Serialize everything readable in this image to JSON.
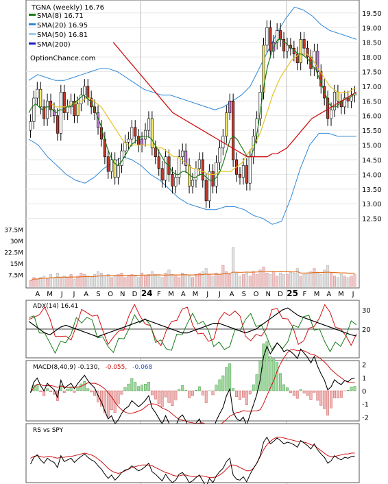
{
  "chart_data": {
    "type": "candlestick",
    "ticker_label": "TGNA (weekly) 16.76",
    "legend": [
      {
        "label": "SMA(8) 16.71",
        "color": "#1a7a1a"
      },
      {
        "label": "SMA(20) 16.95",
        "color": "#2e86d6"
      },
      {
        "label": "SMA(50) 16.81",
        "color": "#9ad0f5"
      },
      {
        "label": "SMA(200)",
        "color": "#1a1acc"
      }
    ],
    "watermark": "OptionChance.com",
    "months": [
      "A",
      "M",
      "J",
      "J",
      "A",
      "S",
      "O",
      "N",
      "D",
      "24",
      "F",
      "M",
      "A",
      "M",
      "J",
      "J",
      "A",
      "S",
      "O",
      "N",
      "D",
      "25",
      "F",
      "M",
      "A",
      "M",
      "J"
    ],
    "price_axis": {
      "min": 12.0,
      "max": 19.8,
      "ticks": [
        "19.50",
        "19.00",
        "18.50",
        "18.00",
        "17.50",
        "17.00",
        "16.50",
        "16.00",
        "15.50",
        "15.00",
        "14.50",
        "14.00",
        "13.50",
        "13.00",
        "12.50"
      ]
    },
    "volume_axis": {
      "max": 40,
      "ticks": [
        "37.5M",
        "30M",
        "22.5M",
        "15M",
        "7.5M"
      ]
    },
    "close": [
      15.8,
      16.6,
      16.9,
      16.3,
      15.9,
      16.5,
      16.2,
      16.0,
      15.4,
      16.8,
      16.1,
      16.3,
      16.5,
      16.0,
      16.4,
      16.7,
      17.0,
      16.6,
      16.3,
      16.1,
      15.6,
      15.2,
      14.6,
      14.1,
      14.5,
      13.9,
      14.3,
      14.8,
      15.1,
      15.2,
      15.6,
      15.3,
      15.0,
      15.2,
      15.5,
      15.9,
      14.9,
      14.6,
      14.2,
      13.8,
      14.6,
      14.0,
      13.6,
      13.9,
      14.6,
      14.8,
      14.3,
      13.6,
      13.8,
      14.2,
      14.5,
      13.8,
      13.1,
      14.1,
      13.6,
      14.4,
      14.9,
      15.3,
      16.1,
      16.5,
      14.5,
      14.0,
      13.9,
      14.3,
      13.7,
      14.6,
      15.3,
      15.9,
      16.8,
      18.4,
      19.0,
      18.2,
      18.5,
      18.9,
      18.6,
      18.2,
      18.4,
      18.3,
      18.1,
      17.8,
      18.6,
      18.3,
      18.0,
      17.6,
      18.2,
      17.5,
      17.0,
      16.6,
      15.9,
      16.2,
      16.8,
      16.5,
      16.3,
      16.6,
      16.5,
      16.7,
      16.76
    ],
    "sma8": [
      16.1,
      16.3,
      16.4,
      16.3,
      16.2,
      16.3,
      16.3,
      16.2,
      16.1,
      16.2,
      16.2,
      16.3,
      16.3,
      16.4,
      16.5,
      16.6,
      16.7,
      16.6,
      16.5,
      16.3,
      16.0,
      15.7,
      15.3,
      14.9,
      14.6,
      14.4,
      14.3,
      14.4,
      14.6,
      14.8,
      15.0,
      15.1,
      15.2,
      15.3,
      15.3,
      15.3,
      15.2,
      15.0,
      14.8,
      14.6,
      14.4,
      14.3,
      14.1,
      14.0,
      14.0,
      14.1,
      14.1,
      14.0,
      13.9,
      13.9,
      14.0,
      14.0,
      13.9,
      13.8,
      13.8,
      13.9,
      14.1,
      14.4,
      14.8,
      15.2,
      15.3,
      15.2,
      15.0,
      14.8,
      14.6,
      14.6,
      14.9,
      15.5,
      16.3,
      17.1,
      17.7,
      18.1,
      18.4,
      18.6,
      18.6,
      18.5,
      18.4,
      18.3,
      18.2,
      18.1,
      18.1,
      18.0,
      17.9,
      17.7,
      17.6,
      17.3,
      17.0,
      16.7,
      16.4,
      16.3,
      16.3,
      16.4,
      16.5,
      16.6,
      16.6,
      16.7,
      16.71
    ],
    "sma20": [
      null,
      null,
      null,
      null,
      null,
      null,
      16.4,
      16.3,
      16.3,
      16.3,
      16.3,
      16.4,
      16.4,
      16.5,
      16.5,
      16.6,
      16.6,
      16.5,
      16.4,
      16.3,
      16.1,
      15.9,
      15.7,
      15.5,
      15.3,
      15.1,
      15.0,
      15.0,
      15.0,
      15.0,
      15.0,
      15.0,
      15.0,
      15.0,
      14.9,
      14.9,
      14.8,
      14.7,
      14.6,
      14.6,
      14.5,
      14.4,
      14.3,
      14.2,
      14.2,
      14.1,
      14.1,
      14.0,
      14.0,
      14.0,
      14.1,
      14.1,
      14.1,
      14.1,
      14.2,
      14.3,
      14.4,
      14.6,
      14.8,
      15.0,
      15.2,
      15.5,
      15.9,
      16.3,
      16.7,
      17.0,
      17.3,
      17.5,
      17.7,
      17.9,
      18.0,
      18.1,
      18.1,
      18.1,
      18.0,
      17.8,
      17.6,
      17.4,
      17.2,
      17.0,
      16.9,
      16.8,
      16.8,
      16.8,
      16.8,
      16.9,
      16.95
    ],
    "sma50": [
      null,
      null,
      null,
      null,
      null,
      null,
      null,
      null,
      null,
      null,
      null,
      null,
      null,
      null,
      null,
      null,
      null,
      18.5,
      18.3,
      18.1,
      17.9,
      17.7,
      17.5,
      17.3,
      17.1,
      16.9,
      16.7,
      16.5,
      16.3,
      16.1,
      16.0,
      15.9,
      15.8,
      15.7,
      15.6,
      15.5,
      15.4,
      15.3,
      15.2,
      15.1,
      15.0,
      14.9,
      14.8,
      14.7,
      14.6,
      14.6,
      14.6,
      14.6,
      14.6,
      14.7,
      14.7,
      14.8,
      14.9,
      15.1,
      15.3,
      15.5,
      15.7,
      15.9,
      16.0,
      16.1,
      16.2,
      16.3,
      16.4,
      16.5,
      16.6,
      16.7,
      16.81
    ],
    "bb_upper": [
      17.2,
      17.4,
      17.3,
      17.2,
      17.2,
      17.3,
      17.4,
      17.5,
      17.6,
      17.6,
      17.5,
      17.3,
      17.1,
      16.9,
      16.8,
      16.7,
      16.7,
      16.6,
      16.5,
      16.4,
      16.3,
      16.2,
      16.3,
      16.5,
      16.7,
      17.0,
      17.6,
      18.2,
      18.8,
      19.3,
      19.7,
      19.6,
      19.4,
      19.1,
      18.9,
      18.8,
      18.7,
      18.6
    ],
    "bb_lower": [
      15.2,
      15.0,
      14.6,
      14.3,
      14.0,
      13.8,
      13.7,
      13.9,
      14.2,
      14.4,
      14.6,
      14.5,
      14.3,
      14.0,
      13.8,
      13.5,
      13.2,
      13.0,
      12.9,
      12.8,
      12.8,
      12.9,
      12.9,
      12.8,
      12.6,
      12.5,
      12.3,
      12.4,
      13.2,
      14.2,
      15.0,
      15.4,
      15.4,
      15.3,
      15.3,
      15.3
    ],
    "volume": [
      4,
      6,
      5,
      6,
      7,
      5,
      8,
      6,
      9,
      6,
      7,
      6,
      8,
      5,
      7,
      9,
      8,
      7,
      6,
      8,
      10,
      9,
      7,
      8,
      6,
      7,
      8,
      9,
      6,
      7,
      8,
      7,
      6,
      9,
      7,
      8,
      10,
      8,
      7,
      6,
      9,
      11,
      8,
      7,
      6,
      9,
      8,
      7,
      6,
      8,
      9,
      10,
      12,
      8,
      7,
      9,
      8,
      14,
      10,
      8,
      26,
      9,
      7,
      8,
      9,
      7,
      10,
      8,
      11,
      13,
      9,
      8,
      10,
      7,
      9,
      8,
      8,
      10,
      9,
      12,
      7,
      8,
      9,
      10,
      12,
      9,
      8,
      11,
      14,
      9,
      7,
      6,
      8,
      7,
      6,
      7,
      8
    ],
    "adx": {
      "label": "ADX(14) 16.41",
      "ticks": [
        "30",
        "20"
      ],
      "adx": [
        24,
        22,
        20,
        18,
        17,
        19,
        21,
        22,
        21,
        20,
        19,
        18,
        17,
        16,
        17,
        18,
        19,
        20,
        21,
        22,
        23,
        24,
        25,
        24,
        23,
        22,
        21,
        20,
        19,
        18,
        18,
        19,
        20,
        21,
        22,
        23,
        23,
        22,
        21,
        20,
        19,
        18,
        19,
        20,
        22,
        24,
        26,
        28,
        30,
        31,
        29,
        27,
        26,
        25,
        24,
        23,
        22,
        21,
        20,
        19,
        18,
        17,
        16.41
      ]
    },
    "macd": {
      "label": "MACD(8,40,9) -0.130,",
      "signal_label": "-0.055,",
      "hist_label": "-0.068",
      "ticks": [
        "2",
        "1",
        "0",
        "-1",
        "-2"
      ]
    },
    "rs": {
      "label": "RS vs SPY"
    }
  }
}
